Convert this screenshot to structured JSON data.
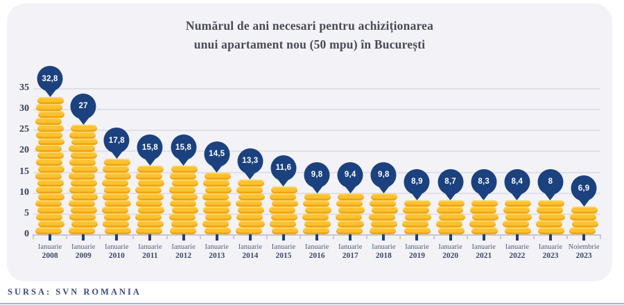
{
  "title": {
    "line1": "Numărul de ani necesari pentru achiziționarea",
    "line2": "unui apartament nou (50 mpu) în București"
  },
  "source": "SURSA: SVN ROMANIA",
  "chart_data": {
    "type": "bar",
    "title": "Numărul de ani necesari pentru achiziționarea unui apartament nou (50 mpu) în București",
    "categories": [
      {
        "month": "Ianuarie",
        "year": "2008"
      },
      {
        "month": "Ianuarie",
        "year": "2009"
      },
      {
        "month": "Ianuarie",
        "year": "2010"
      },
      {
        "month": "Ianuarie",
        "year": "2011"
      },
      {
        "month": "Ianuarie",
        "year": "2012"
      },
      {
        "month": "Ianuarie",
        "year": "2013"
      },
      {
        "month": "Ianuarie",
        "year": "2014"
      },
      {
        "month": "Ianuarie",
        "year": "2015"
      },
      {
        "month": "Ianuarie",
        "year": "2016"
      },
      {
        "month": "Ianuarie",
        "year": "2017"
      },
      {
        "month": "Ianuarie",
        "year": "2018"
      },
      {
        "month": "Ianuarie",
        "year": "2019"
      },
      {
        "month": "Ianuarie",
        "year": "2020"
      },
      {
        "month": "Ianuarie",
        "year": "2021"
      },
      {
        "month": "Ianuarie",
        "year": "2022"
      },
      {
        "month": "Ianuarie",
        "year": "2023"
      },
      {
        "month": "Noiembrie",
        "year": "2023"
      }
    ],
    "values": [
      32.8,
      27,
      17.8,
      15.8,
      15.8,
      14.5,
      13.3,
      11.6,
      9.8,
      9.4,
      9.8,
      8.9,
      8.7,
      8.3,
      8.4,
      8,
      6.9
    ],
    "value_labels": [
      "32,8",
      "27",
      "17,8",
      "15,8",
      "15,8",
      "14,5",
      "13,3",
      "11,6",
      "9,8",
      "9,4",
      "9,8",
      "8,9",
      "8,7",
      "8,3",
      "8,4",
      "8",
      "6,9"
    ],
    "xlabel": "",
    "ylabel": "",
    "ylim": [
      0,
      35
    ],
    "yticks": [
      0,
      5,
      10,
      15,
      20,
      25,
      30,
      35
    ],
    "grid": true,
    "legend": false,
    "bar_style": "coin-stack",
    "marker_style": "map-pin",
    "colors": {
      "pin": "#1b417f",
      "coin": "#fbc130",
      "coin_highlight": "#fdd55e",
      "coin_shadow": "#f0a316",
      "background": "#f2f2f7",
      "gridline": "#e0e0e9",
      "title_text": "#4a4a56",
      "axis_text": "#3d4969"
    }
  }
}
